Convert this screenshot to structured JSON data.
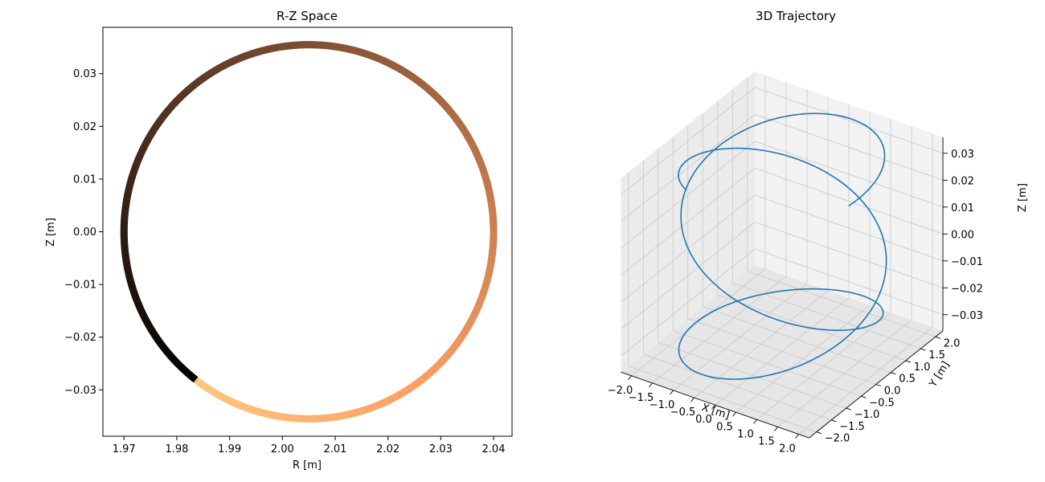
{
  "chart_data": [
    {
      "type": "scatter",
      "title": "R-Z Space",
      "xlabel": "R [m]",
      "ylabel": "Z [m]",
      "xlim": [
        1.966,
        2.0435
      ],
      "ylim": [
        -0.0388,
        0.0388
      ],
      "xticks": [
        "1.97",
        "1.98",
        "1.99",
        "2.00",
        "2.01",
        "2.02",
        "2.03",
        "2.04"
      ],
      "xtick_values": [
        1.97,
        1.98,
        1.99,
        2.0,
        2.01,
        2.02,
        2.03,
        2.04
      ],
      "yticks": [
        "0.03",
        "0.02",
        "0.01",
        "0.00",
        "−0.01",
        "−0.02",
        "−0.03"
      ],
      "ytick_values": [
        0.03,
        0.02,
        0.01,
        0.0,
        -0.01,
        -0.02,
        -0.03
      ],
      "circle": {
        "center_r": 2.005,
        "center_z": 0.0,
        "radius_r": 0.035,
        "radius_z": 0.0355
      },
      "colormap": "copper",
      "color_start_angle_deg": 232,
      "grid": false
    },
    {
      "type": "line3d",
      "title": "3D Trajectory",
      "xlabel": "X [m]",
      "ylabel": "Y [m]",
      "zlabel": "Z [m]",
      "xticks": [
        "−2.0",
        "−1.5",
        "−1.0",
        "−0.5",
        "0.0",
        "0.5",
        "1.0",
        "1.5",
        "2.0"
      ],
      "yticks": [
        "−2.0",
        "−1.5",
        "−1.0",
        "−0.5",
        "0.0",
        "0.5",
        "1.0",
        "1.5",
        "2.0"
      ],
      "zticks": [
        "0.03",
        "0.02",
        "0.01",
        "0.00",
        "−0.01",
        "−0.02",
        "−0.03"
      ],
      "series_color": "#1f77b4",
      "grid": true
    }
  ]
}
